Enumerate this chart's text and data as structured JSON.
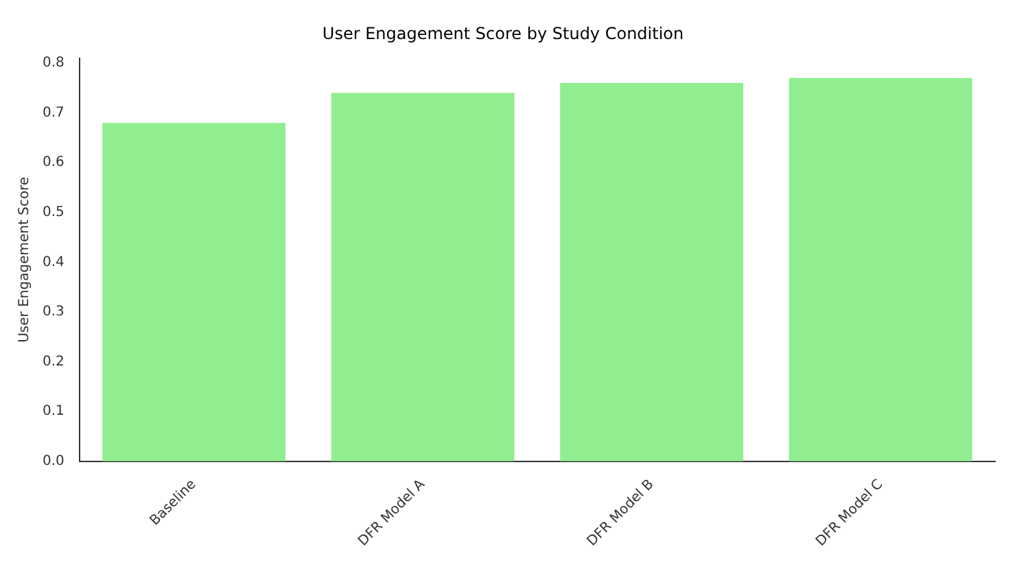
{
  "chart_data": {
    "type": "bar",
    "title": "User Engagement Score by Study Condition",
    "ylabel": "User Engagement Score",
    "categories": [
      "Baseline",
      "DFR Model A",
      "DFR Model B",
      "DFR Model C"
    ],
    "values": [
      0.68,
      0.74,
      0.76,
      0.77
    ],
    "color": "#90ee90",
    "ylim": [
      0,
      0.81
    ],
    "yticks": [
      {
        "value": 0,
        "label": "0.0"
      },
      {
        "value": 0.1,
        "label": "0.1"
      },
      {
        "value": 0.2,
        "label": "0.2"
      },
      {
        "value": 0.3,
        "label": "0.3"
      },
      {
        "value": 0.4,
        "label": "0.4"
      },
      {
        "value": 0.5,
        "label": "0.5"
      },
      {
        "value": 0.6,
        "label": "0.6"
      },
      {
        "value": 0.7,
        "label": "0.7"
      },
      {
        "value": 0.8,
        "label": "0.8"
      }
    ],
    "grid": false,
    "legend": false
  }
}
